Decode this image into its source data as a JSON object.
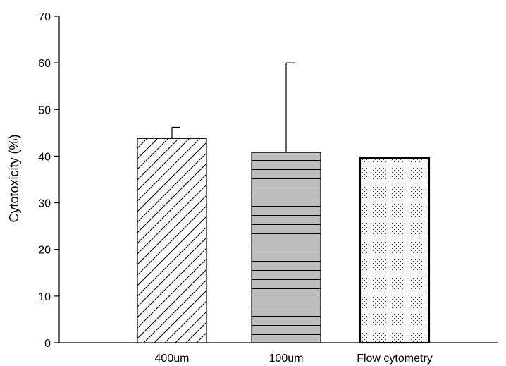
{
  "chart_data": {
    "type": "bar",
    "title": "",
    "xlabel": "",
    "ylabel": "Cytotoxicity (%)",
    "ylim": [
      0,
      70
    ],
    "yticks": [
      0,
      10,
      20,
      30,
      40,
      50,
      60,
      70
    ],
    "grid": false,
    "categories": [
      "400um",
      "100um",
      "Flow cytometry"
    ],
    "values": [
      43.8,
      40.8,
      39.6
    ],
    "error_upper": [
      46.2,
      60.0,
      null
    ],
    "bar_styles": [
      {
        "fill": "#ffffff",
        "pattern": "diagonal-hatch"
      },
      {
        "fill": "#bdbdbd",
        "pattern": "horizontal-lines"
      },
      {
        "fill": "#ffffff",
        "pattern": "dots"
      }
    ]
  }
}
